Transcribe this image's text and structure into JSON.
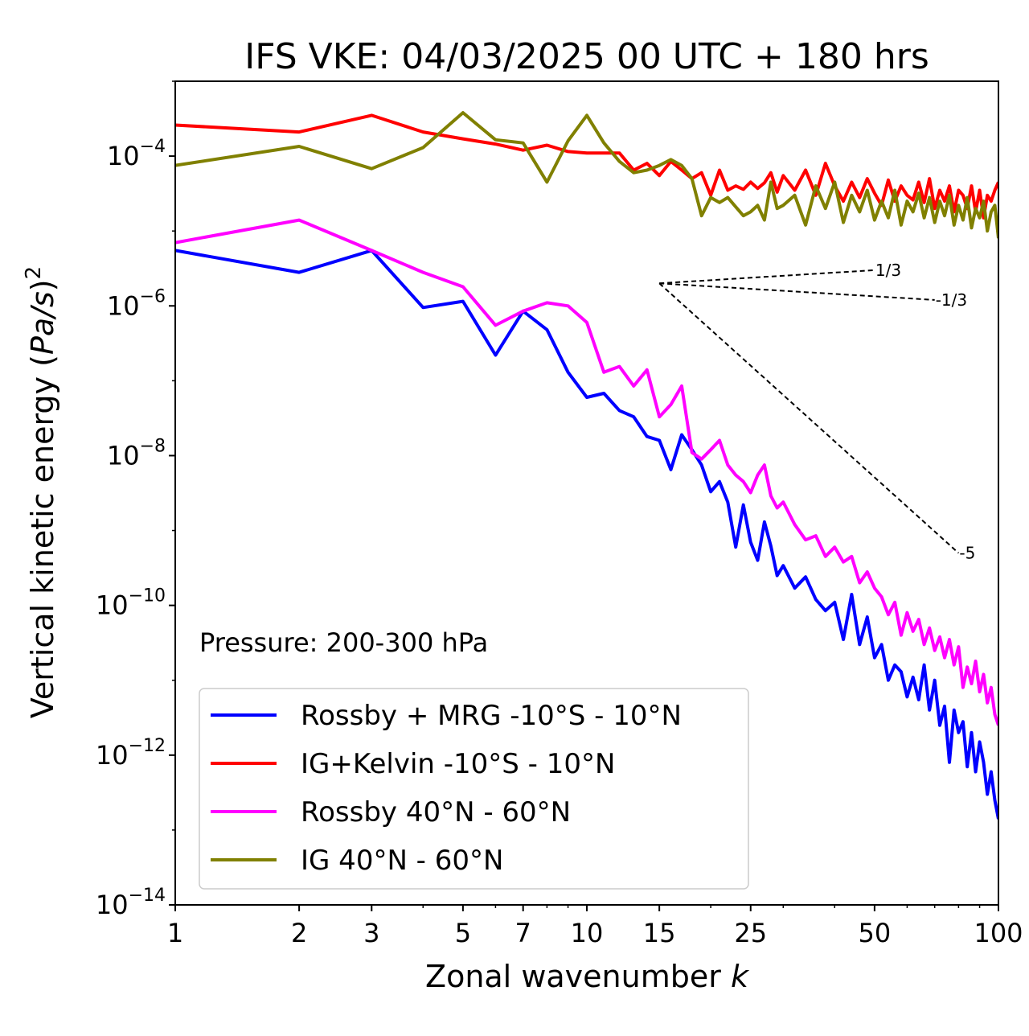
{
  "chart_data": {
    "type": "line",
    "title": "IFS VKE: 04/03/2025 00 UTC + 180 hrs",
    "xlabel": "Zonal wavenumber",
    "xlabel_italic": "k",
    "ylabel_prefix": "Vertical kinetic energy (",
    "ylabel_unit": "Pa/s",
    "ylabel_suffix": ")",
    "ylabel_exponent": "2",
    "xscale": "log",
    "yscale": "log",
    "xlim": [
      1,
      100
    ],
    "ylim": [
      1e-14,
      0.001
    ],
    "xticks": [
      1,
      2,
      3,
      5,
      7,
      10,
      15,
      25,
      50,
      100
    ],
    "xtick_labels": [
      "1",
      "2",
      "3",
      "5",
      "7",
      "10",
      "15",
      "25",
      "50",
      "100"
    ],
    "yticks": [
      1e-14,
      1e-12,
      1e-10,
      1e-08,
      1e-06,
      0.0001
    ],
    "ytick_base": "10",
    "ytick_exponents": [
      "−14",
      "−12",
      "−10",
      "−8",
      "−6",
      "−4"
    ],
    "annotation": "Pressure: 200-300 hPa",
    "legend_position": "lower-left",
    "slope_lines": [
      {
        "label": "1/3",
        "x0": 15,
        "y0": 2e-06,
        "x1": 50,
        "y1": 3e-06
      },
      {
        "label": "-1/3",
        "x0": 15,
        "y0": 2e-06,
        "x1": 70,
        "y1": 1.2e-06
      },
      {
        "label": "-5",
        "x0": 15,
        "y0": 2e-06,
        "x1": 80,
        "y1": 5e-10
      }
    ],
    "series": [
      {
        "name": "Rossby + MRG -10°S - 10°N",
        "color": "#0000ff",
        "x": [
          1,
          2,
          3,
          4,
          5,
          6,
          7,
          8,
          9,
          10,
          11,
          12,
          13,
          14,
          15,
          16,
          17,
          18,
          19,
          20,
          21,
          22,
          23,
          24,
          25,
          26,
          27,
          28,
          29,
          30,
          32,
          34,
          36,
          38,
          40,
          42,
          44,
          46,
          48,
          50,
          52,
          54,
          56,
          58,
          60,
          62,
          64,
          66,
          68,
          70,
          72,
          74,
          76,
          78,
          80,
          82,
          84,
          86,
          88,
          90,
          92,
          94,
          96,
          98,
          100
        ],
        "y": [
          5.5e-06,
          2.8e-06,
          5.5e-06,
          9.5e-07,
          1.15e-06,
          2.2e-07,
          8.5e-07,
          4.8e-07,
          1.3e-07,
          6e-08,
          6.8e-08,
          4e-08,
          3.3e-08,
          1.8e-08,
          1.6e-08,
          6.5e-09,
          1.9e-08,
          1.2e-08,
          7.5e-09,
          3.3e-09,
          4.5e-09,
          2.4e-09,
          6e-10,
          2.2e-09,
          7e-10,
          4e-10,
          1.3e-09,
          6.2e-10,
          2.5e-10,
          3.4e-10,
          1.7e-10,
          2.4e-10,
          1.2e-10,
          8.5e-11,
          1.1e-10,
          3.5e-11,
          1.4e-10,
          3e-11,
          7e-11,
          2e-11,
          3e-11,
          1e-11,
          1.6e-11,
          1.3e-11,
          6e-12,
          1.1e-11,
          5.5e-12,
          1.6e-11,
          4e-12,
          1e-11,
          2.5e-12,
          4.5e-12,
          8e-13,
          4e-12,
          2e-12,
          2.8e-12,
          7e-13,
          2e-12,
          6e-13,
          1.5e-12,
          8e-13,
          3e-13,
          6e-13,
          2.5e-13,
          1.4e-13
        ]
      },
      {
        "name": "IG+Kelvin -10°S - 10°N",
        "color": "#ff0000",
        "x": [
          1,
          2,
          3,
          4,
          5,
          6,
          7,
          8,
          9,
          10,
          11,
          12,
          13,
          14,
          15,
          16,
          17,
          18,
          19,
          20,
          21,
          22,
          23,
          24,
          25,
          26,
          27,
          28,
          29,
          30,
          32,
          34,
          36,
          38,
          40,
          42,
          44,
          46,
          48,
          50,
          52,
          54,
          56,
          58,
          60,
          62,
          64,
          66,
          68,
          70,
          72,
          74,
          76,
          78,
          80,
          82,
          84,
          86,
          88,
          90,
          92,
          94,
          96,
          98,
          100
        ],
        "y": [
          0.00026,
          0.00021,
          0.00035,
          0.00021,
          0.00017,
          0.000145,
          0.00012,
          0.00014,
          0.000115,
          0.00011,
          0.00011,
          0.00011,
          6.5e-05,
          8e-05,
          5.5e-05,
          8.5e-05,
          6.5e-05,
          5e-05,
          6e-05,
          3e-05,
          6.5e-05,
          3.5e-05,
          4e-05,
          3.6e-05,
          4.5e-05,
          3.7e-05,
          4.4e-05,
          6e-05,
          3.3e-05,
          5.5e-05,
          3.5e-05,
          6.5e-05,
          3e-05,
          8e-05,
          4e-05,
          2.5e-05,
          4.5e-05,
          2.8e-05,
          5e-05,
          3.2e-05,
          2.2e-05,
          4.8e-05,
          2.5e-05,
          4e-05,
          3e-05,
          2.6e-05,
          4.5e-05,
          2.4e-05,
          5e-05,
          2e-05,
          3.5e-05,
          2.5e-05,
          4e-05,
          1.8e-05,
          3.5e-05,
          3e-05,
          2e-05,
          4e-05,
          1.8e-05,
          3.5e-05,
          1.5e-05,
          3e-05,
          2.5e-05,
          3.5e-05,
          4.5e-05
        ]
      },
      {
        "name": "Rossby 40°N - 60°N",
        "color": "#ff00ff",
        "x": [
          1,
          2,
          3,
          4,
          5,
          6,
          7,
          8,
          9,
          10,
          11,
          12,
          13,
          14,
          15,
          16,
          17,
          18,
          19,
          20,
          21,
          22,
          23,
          24,
          25,
          26,
          27,
          28,
          29,
          30,
          32,
          34,
          36,
          38,
          40,
          42,
          44,
          46,
          48,
          50,
          52,
          54,
          56,
          58,
          60,
          62,
          64,
          66,
          68,
          70,
          72,
          74,
          76,
          78,
          80,
          82,
          84,
          86,
          88,
          90,
          92,
          94,
          96,
          98,
          100
        ],
        "y": [
          7e-06,
          1.4e-05,
          5.5e-06,
          2.8e-06,
          1.8e-06,
          5.5e-07,
          8.5e-07,
          1.1e-06,
          1e-06,
          6e-07,
          1.3e-07,
          1.55e-07,
          8.5e-08,
          1.4e-07,
          3.3e-08,
          4.8e-08,
          8.5e-08,
          1.1e-08,
          9e-09,
          1.2e-08,
          1.6e-08,
          7.5e-09,
          5.5e-09,
          4.5e-09,
          3.2e-09,
          5.5e-09,
          7.5e-09,
          2.9e-09,
          2e-09,
          2.4e-09,
          1.2e-09,
          7.5e-10,
          8.5e-10,
          4.5e-10,
          6e-10,
          3.8e-10,
          4.5e-10,
          2e-10,
          2.8e-10,
          1.7e-10,
          1.3e-10,
          7.5e-11,
          1.1e-10,
          4e-11,
          8e-11,
          4.5e-11,
          6.5e-11,
          3e-11,
          5e-11,
          2.5e-11,
          3.8e-11,
          2e-11,
          3.5e-11,
          1.6e-11,
          2.8e-11,
          8e-12,
          1.5e-11,
          9e-12,
          1.8e-11,
          7e-12,
          1.2e-11,
          5e-12,
          8e-12,
          3.5e-12,
          2.5e-12
        ]
      },
      {
        "name": "IG 40°N - 60°N",
        "color": "#808000",
        "x": [
          1,
          2,
          3,
          4,
          5,
          6,
          7,
          8,
          9,
          10,
          11,
          12,
          13,
          14,
          15,
          16,
          17,
          18,
          19,
          20,
          21,
          22,
          23,
          24,
          25,
          26,
          27,
          28,
          29,
          30,
          32,
          34,
          36,
          38,
          40,
          42,
          44,
          46,
          48,
          50,
          52,
          54,
          56,
          58,
          60,
          62,
          64,
          66,
          68,
          70,
          72,
          74,
          76,
          78,
          80,
          82,
          84,
          86,
          88,
          90,
          92,
          94,
          96,
          98,
          100
        ],
        "y": [
          7.5e-05,
          0.000135,
          6.8e-05,
          0.00013,
          0.00038,
          0.000165,
          0.00015,
          4.5e-05,
          0.00016,
          0.00035,
          0.00015,
          8.5e-05,
          6e-05,
          6.5e-05,
          7.5e-05,
          9e-05,
          7.5e-05,
          5e-05,
          1.6e-05,
          2.8e-05,
          2.4e-05,
          2.8e-05,
          2.1e-05,
          1.6e-05,
          1.8e-05,
          2.2e-05,
          1.4e-05,
          4.5e-05,
          2e-05,
          2.2e-05,
          3e-05,
          1.2e-05,
          4e-05,
          2e-05,
          4.5e-05,
          1.3e-05,
          3e-05,
          1.8e-05,
          3.5e-05,
          1.4e-05,
          2.5e-05,
          1.5e-05,
          3.5e-05,
          1.2e-05,
          2.5e-05,
          1.8e-05,
          3.2e-05,
          1.5e-05,
          2.8e-05,
          1.3e-05,
          2.5e-05,
          1.6e-05,
          3e-05,
          1.2e-05,
          2.2e-05,
          1.4e-05,
          2.8e-05,
          1.1e-05,
          2e-05,
          1.5e-05,
          2.5e-05,
          1e-05,
          1.8e-05,
          2.2e-05,
          8e-06
        ]
      }
    ]
  }
}
